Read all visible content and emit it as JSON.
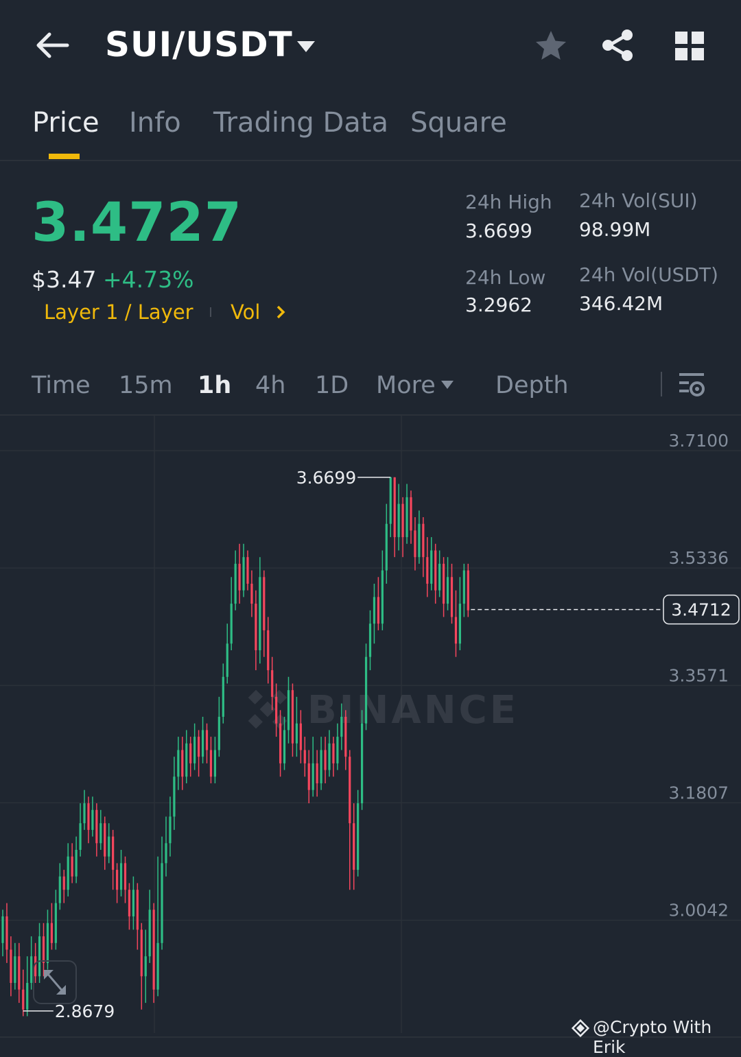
{
  "header": {
    "pair": "SUI/USDT",
    "icons": {
      "back": "arrow-left-icon",
      "dropdown": "caret-down-icon",
      "favorite": "star-icon",
      "share": "share-icon",
      "menu": "grid-icon"
    }
  },
  "tabs": [
    {
      "label": "Price",
      "active": true
    },
    {
      "label": "Info",
      "active": false
    },
    {
      "label": "Trading Data",
      "active": false
    },
    {
      "label": "Square",
      "active": false
    }
  ],
  "ticker": {
    "last_price": "3.4727",
    "usd_price": "$3.47",
    "change_pct": "+4.73%",
    "tag": "Layer 1 / Layer",
    "vol_link": "Vol",
    "stats": {
      "high_label": "24h High",
      "high_value": "3.6699",
      "low_label": "24h Low",
      "low_value": "3.2962",
      "vol_sui_label": "24h Vol(SUI)",
      "vol_sui_value": "98.99M",
      "vol_usdt_label": "24h Vol(USDT)",
      "vol_usdt_value": "346.42M"
    }
  },
  "intervals": [
    {
      "label": "Time",
      "active": false
    },
    {
      "label": "15m",
      "active": false
    },
    {
      "label": "1h",
      "active": true
    },
    {
      "label": "4h",
      "active": false
    },
    {
      "label": "1D",
      "active": false
    },
    {
      "label": "More",
      "active": false
    },
    {
      "label": "Depth",
      "active": false
    }
  ],
  "colors": {
    "up": "#2ebd85",
    "down": "#f6465d",
    "accent": "#f0b90b",
    "background": "#1f2630"
  },
  "chart_data": {
    "type": "candlestick",
    "y_ticks": [
      "3.7100",
      "3.5336",
      "3.3571",
      "3.1807",
      "3.0042"
    ],
    "ylim": [
      2.85,
      3.72
    ],
    "high_marker": "3.6699",
    "low_marker": "2.8679",
    "current_price_label": "3.4712",
    "current_price": 3.4712,
    "watermark": "BINANCE",
    "credit": "@Crypto With Erik",
    "candles": [
      [
        2.97,
        3.01,
        2.95,
        3.02
      ],
      [
        3.01,
        2.96,
        2.94,
        3.03
      ],
      [
        2.96,
        2.91,
        2.89,
        2.98
      ],
      [
        2.91,
        2.95,
        2.9,
        2.97
      ],
      [
        2.95,
        2.9,
        2.88,
        2.97
      ],
      [
        2.9,
        2.87,
        2.86,
        2.93
      ],
      [
        2.87,
        2.91,
        2.86,
        2.95
      ],
      [
        2.91,
        2.95,
        2.9,
        2.98
      ],
      [
        2.95,
        2.92,
        2.91,
        2.97
      ],
      [
        2.92,
        2.98,
        2.91,
        3.0
      ],
      [
        2.98,
        2.94,
        2.92,
        3.0
      ],
      [
        2.94,
        3.0,
        2.93,
        3.02
      ],
      [
        3.0,
        2.97,
        2.96,
        3.03
      ],
      [
        2.97,
        3.03,
        2.96,
        3.05
      ],
      [
        3.03,
        3.07,
        3.02,
        3.09
      ],
      [
        3.07,
        3.05,
        3.03,
        3.08
      ],
      [
        3.05,
        3.1,
        3.04,
        3.12
      ],
      [
        3.1,
        3.07,
        3.06,
        3.12
      ],
      [
        3.07,
        3.11,
        3.06,
        3.13
      ],
      [
        3.11,
        3.15,
        3.1,
        3.18
      ],
      [
        3.15,
        3.18,
        3.14,
        3.2
      ],
      [
        3.18,
        3.14,
        3.12,
        3.19
      ],
      [
        3.14,
        3.17,
        3.13,
        3.19
      ],
      [
        3.17,
        3.12,
        3.1,
        3.18
      ],
      [
        3.12,
        3.15,
        3.11,
        3.17
      ],
      [
        3.15,
        3.1,
        3.08,
        3.16
      ],
      [
        3.1,
        3.13,
        3.09,
        3.15
      ],
      [
        3.13,
        3.08,
        3.05,
        3.14
      ],
      [
        3.08,
        3.05,
        3.03,
        3.09
      ],
      [
        3.05,
        3.09,
        3.04,
        3.11
      ],
      [
        3.09,
        3.05,
        3.03,
        3.1
      ],
      [
        3.05,
        3.01,
        2.99,
        3.06
      ],
      [
        3.01,
        3.05,
        2.99,
        3.07
      ],
      [
        3.05,
        2.99,
        2.96,
        3.06
      ],
      [
        2.99,
        2.92,
        2.87,
        3.0
      ],
      [
        2.92,
        2.95,
        2.88,
        2.99
      ],
      [
        2.95,
        3.02,
        2.94,
        3.05
      ],
      [
        3.02,
        2.9,
        2.88,
        3.03
      ],
      [
        2.9,
        2.97,
        2.89,
        3.1
      ],
      [
        2.97,
        3.09,
        2.96,
        3.13
      ],
      [
        3.09,
        3.12,
        3.07,
        3.16
      ],
      [
        3.12,
        3.16,
        3.1,
        3.19
      ],
      [
        3.16,
        3.22,
        3.14,
        3.25
      ],
      [
        3.22,
        3.26,
        3.2,
        3.28
      ],
      [
        3.26,
        3.22,
        3.2,
        3.28
      ],
      [
        3.22,
        3.27,
        3.21,
        3.29
      ],
      [
        3.27,
        3.24,
        3.22,
        3.28
      ],
      [
        3.24,
        3.28,
        3.23,
        3.3
      ],
      [
        3.28,
        3.25,
        3.22,
        3.29
      ],
      [
        3.25,
        3.29,
        3.24,
        3.31
      ],
      [
        3.29,
        3.26,
        3.24,
        3.3
      ],
      [
        3.26,
        3.22,
        3.21,
        3.28
      ],
      [
        3.22,
        3.26,
        3.21,
        3.28
      ],
      [
        3.26,
        3.31,
        3.25,
        3.34
      ],
      [
        3.31,
        3.37,
        3.3,
        3.39
      ],
      [
        3.37,
        3.42,
        3.36,
        3.45
      ],
      [
        3.42,
        3.48,
        3.41,
        3.52
      ],
      [
        3.48,
        3.54,
        3.47,
        3.56
      ],
      [
        3.54,
        3.5,
        3.48,
        3.57
      ],
      [
        3.5,
        3.55,
        3.49,
        3.57
      ],
      [
        3.55,
        3.51,
        3.5,
        3.56
      ],
      [
        3.51,
        3.48,
        3.46,
        3.53
      ],
      [
        3.48,
        3.41,
        3.38,
        3.5
      ],
      [
        3.41,
        3.52,
        3.39,
        3.55
      ],
      [
        3.52,
        3.44,
        3.4,
        3.53
      ],
      [
        3.44,
        3.38,
        3.36,
        3.46
      ],
      [
        3.38,
        3.34,
        3.32,
        3.4
      ],
      [
        3.34,
        3.3,
        3.28,
        3.36
      ],
      [
        3.3,
        3.24,
        3.22,
        3.32
      ],
      [
        3.24,
        3.29,
        3.23,
        3.31
      ],
      [
        3.29,
        3.35,
        3.27,
        3.37
      ],
      [
        3.35,
        3.27,
        3.25,
        3.36
      ],
      [
        3.27,
        3.3,
        3.25,
        3.34
      ],
      [
        3.3,
        3.26,
        3.24,
        3.32
      ],
      [
        3.26,
        3.24,
        3.22,
        3.28
      ],
      [
        3.24,
        3.2,
        3.18,
        3.26
      ],
      [
        3.2,
        3.24,
        3.19,
        3.28
      ],
      [
        3.24,
        3.21,
        3.19,
        3.26
      ],
      [
        3.21,
        3.26,
        3.2,
        3.28
      ],
      [
        3.26,
        3.23,
        3.21,
        3.28
      ],
      [
        3.23,
        3.27,
        3.22,
        3.29
      ],
      [
        3.27,
        3.24,
        3.22,
        3.28
      ],
      [
        3.24,
        3.28,
        3.23,
        3.3
      ],
      [
        3.28,
        3.31,
        3.26,
        3.33
      ],
      [
        3.31,
        3.25,
        3.23,
        3.32
      ],
      [
        3.25,
        3.15,
        3.05,
        3.26
      ],
      [
        3.15,
        3.08,
        3.05,
        3.18
      ],
      [
        3.08,
        3.18,
        3.07,
        3.2
      ],
      [
        3.18,
        3.3,
        3.17,
        3.32
      ],
      [
        3.3,
        3.4,
        3.29,
        3.42
      ],
      [
        3.4,
        3.45,
        3.38,
        3.47
      ],
      [
        3.45,
        3.49,
        3.42,
        3.51
      ],
      [
        3.49,
        3.45,
        3.44,
        3.52
      ],
      [
        3.45,
        3.53,
        3.44,
        3.56
      ],
      [
        3.53,
        3.6,
        3.51,
        3.63
      ],
      [
        3.6,
        3.67,
        3.58,
        3.67
      ],
      [
        3.67,
        3.58,
        3.55,
        3.67
      ],
      [
        3.58,
        3.63,
        3.56,
        3.66
      ],
      [
        3.63,
        3.58,
        3.55,
        3.64
      ],
      [
        3.58,
        3.64,
        3.57,
        3.66
      ],
      [
        3.64,
        3.59,
        3.57,
        3.65
      ],
      [
        3.59,
        3.55,
        3.53,
        3.61
      ],
      [
        3.55,
        3.6,
        3.54,
        3.62
      ],
      [
        3.6,
        3.55,
        3.52,
        3.61
      ],
      [
        3.55,
        3.51,
        3.49,
        3.58
      ],
      [
        3.51,
        3.56,
        3.5,
        3.58
      ],
      [
        3.56,
        3.5,
        3.48,
        3.57
      ],
      [
        3.5,
        3.54,
        3.49,
        3.56
      ],
      [
        3.54,
        3.48,
        3.46,
        3.55
      ],
      [
        3.48,
        3.52,
        3.47,
        3.55
      ],
      [
        3.52,
        3.46,
        3.45,
        3.54
      ],
      [
        3.46,
        3.42,
        3.4,
        3.5
      ],
      [
        3.42,
        3.48,
        3.41,
        3.52
      ],
      [
        3.48,
        3.53,
        3.46,
        3.54
      ],
      [
        3.53,
        3.47,
        3.46,
        3.54
      ]
    ]
  }
}
